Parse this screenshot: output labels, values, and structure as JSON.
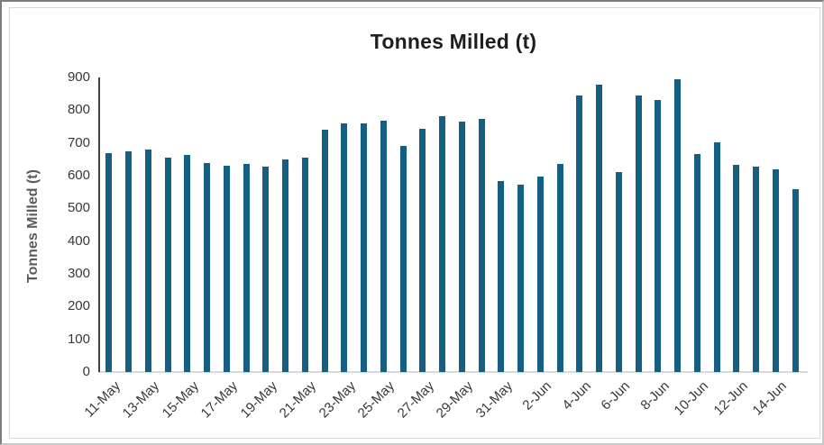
{
  "chart_data": {
    "type": "bar",
    "title": "Tonnes Milled (t)",
    "ylabel": "Tonnes Milled (t)",
    "xlabel": "",
    "ylim": [
      0,
      900
    ],
    "ytick_step": 100,
    "grid": false,
    "legend": "none",
    "bar_color": "#156082",
    "axis_text_color": "#383838",
    "categories": [
      "11-May",
      "12-May",
      "13-May",
      "14-May",
      "15-May",
      "16-May",
      "17-May",
      "18-May",
      "19-May",
      "20-May",
      "21-May",
      "22-May",
      "23-May",
      "24-May",
      "25-May",
      "26-May",
      "27-May",
      "28-May",
      "29-May",
      "30-May",
      "31-May",
      "1-Jun",
      "2-Jun",
      "3-Jun",
      "4-Jun",
      "5-Jun",
      "6-Jun",
      "7-Jun",
      "8-Jun",
      "9-Jun",
      "10-Jun",
      "11-Jun",
      "12-Jun",
      "13-Jun",
      "14-Jun",
      "15-Jun"
    ],
    "values": [
      670,
      674,
      679,
      656,
      663,
      638,
      631,
      635,
      628,
      650,
      655,
      741,
      760,
      759,
      768,
      690,
      744,
      782,
      766,
      773,
      583,
      572,
      598,
      635,
      845,
      878,
      610,
      844,
      830,
      895,
      667,
      701,
      632,
      628,
      620,
      560
    ],
    "x_tick_labels_shown": [
      "11-May",
      "13-May",
      "15-May",
      "17-May",
      "19-May",
      "21-May",
      "23-May",
      "25-May",
      "27-May",
      "29-May",
      "31-May",
      "2-Jun",
      "4-Jun",
      "6-Jun",
      "8-Jun",
      "10-Jun",
      "12-Jun",
      "14-Jun"
    ],
    "x_tick_every": 2
  }
}
